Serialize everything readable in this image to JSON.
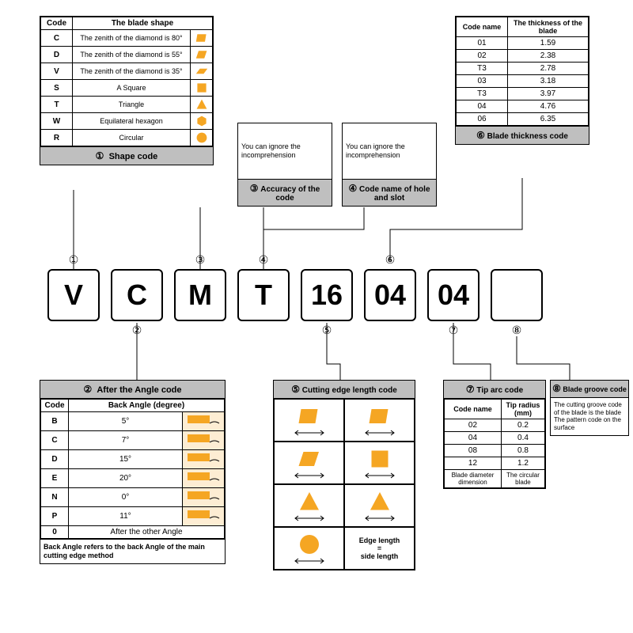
{
  "colors": {
    "accent": "#f5a623",
    "header_bg": "#bfbfbf",
    "border": "#000000"
  },
  "code_sequence": [
    "V",
    "C",
    "M",
    "T",
    "16",
    "04",
    "04",
    ""
  ],
  "code_labels": [
    "①",
    "②",
    "③",
    "④",
    "⑤",
    "⑥",
    "⑦",
    "⑧"
  ],
  "panel1": {
    "title_num": "①",
    "title": "Shape code",
    "columns": [
      "Code",
      "The blade shape"
    ],
    "rows": [
      {
        "code": "C",
        "desc": "The zenith of the diamond is 80°",
        "shape": "rhombus80"
      },
      {
        "code": "D",
        "desc": "The zenith of the diamond is 55°",
        "shape": "rhombus55"
      },
      {
        "code": "V",
        "desc": "The zenith of the diamond is 35°",
        "shape": "rhombus35"
      },
      {
        "code": "S",
        "desc": "A Square",
        "shape": "square"
      },
      {
        "code": "T",
        "desc": "Triangle",
        "shape": "triangle"
      },
      {
        "code": "W",
        "desc": "Equilateral hexagon",
        "shape": "hexagon"
      },
      {
        "code": "R",
        "desc": "Circular",
        "shape": "circle"
      }
    ]
  },
  "panel2": {
    "title_num": "②",
    "title": "After the Angle code",
    "columns": [
      "Code",
      "Back Angle (degree)"
    ],
    "rows": [
      {
        "code": "B",
        "val": "5°"
      },
      {
        "code": "C",
        "val": "7°"
      },
      {
        "code": "D",
        "val": "15°"
      },
      {
        "code": "E",
        "val": "20°"
      },
      {
        "code": "N",
        "val": "0°"
      },
      {
        "code": "P",
        "val": "11°"
      },
      {
        "code": "0",
        "val": "After the other Angle"
      }
    ],
    "footnote": "Back Angle refers to the back Angle of the main cutting edge method"
  },
  "panel3": {
    "title_num": "③",
    "title": "Accuracy of the code",
    "text": "You can ignore the incomprehension"
  },
  "panel4": {
    "title_num": "④",
    "title": "Code name of hole and slot",
    "text": "You can ignore the incomprehension"
  },
  "panel5": {
    "title_num": "⑤",
    "title": "Cutting edge length code",
    "shapes": [
      "rhombus80",
      "rhombus80",
      "rhombus55",
      "square",
      "triangle",
      "triangle",
      "circle"
    ],
    "last_cell": "Edge length = side length"
  },
  "panel6": {
    "title_num": "⑥",
    "title": "Blade thickness code",
    "columns": [
      "Code name",
      "The thickness of the blade"
    ],
    "rows": [
      {
        "c": "01",
        "v": "1.59"
      },
      {
        "c": "02",
        "v": "2.38"
      },
      {
        "c": "T3",
        "v": "2.78"
      },
      {
        "c": "03",
        "v": "3.18"
      },
      {
        "c": "T3",
        "v": "3.97"
      },
      {
        "c": "04",
        "v": "4.76"
      },
      {
        "c": "06",
        "v": "6.35"
      }
    ]
  },
  "panel7": {
    "title_num": "⑦",
    "title": "Tip arc code",
    "columns": [
      "Code name",
      "Tip radius (mm)"
    ],
    "rows": [
      {
        "c": "02",
        "v": "0.2"
      },
      {
        "c": "04",
        "v": "0.4"
      },
      {
        "c": "08",
        "v": "0.8"
      },
      {
        "c": "12",
        "v": "1.2"
      }
    ],
    "foot_left": "Blade diameter dimension",
    "foot_right": "The circular blade"
  },
  "panel8": {
    "title_num": "⑧",
    "title": "Blade groove code",
    "text": "The cutting groove code of the blade is the blade\nThe pattern code on the surface"
  }
}
